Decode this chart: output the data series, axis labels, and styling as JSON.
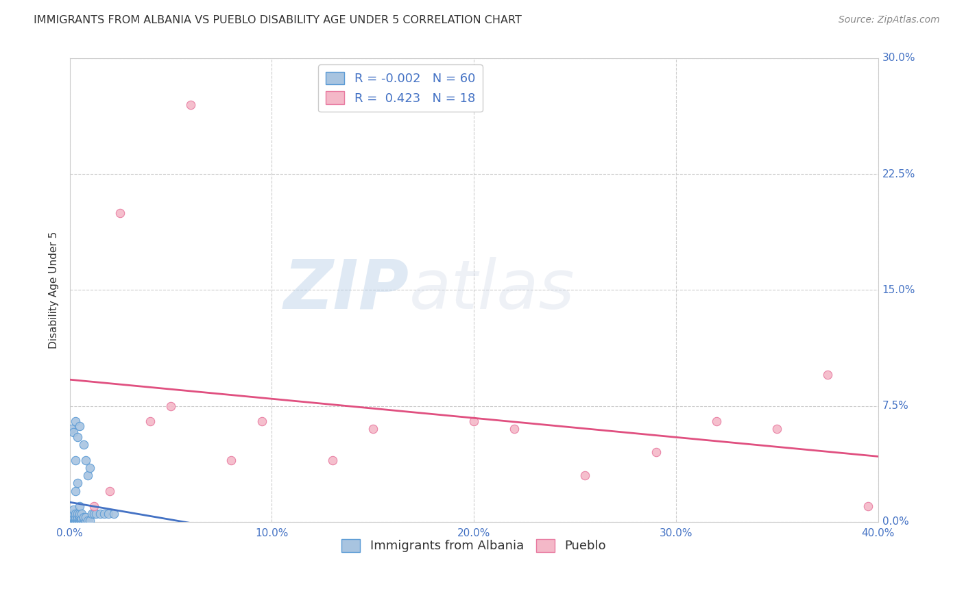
{
  "title": "IMMIGRANTS FROM ALBANIA VS PUEBLO DISABILITY AGE UNDER 5 CORRELATION CHART",
  "source": "Source: ZipAtlas.com",
  "xlabel_tick_vals": [
    0.0,
    0.1,
    0.2,
    0.3,
    0.4
  ],
  "ylabel_tick_vals": [
    0.0,
    0.075,
    0.15,
    0.225,
    0.3
  ],
  "ylabel_ticks": [
    "0.0%",
    "7.5%",
    "15.0%",
    "22.5%",
    "30.0%"
  ],
  "ylabel": "Disability Age Under 5",
  "xlim": [
    0.0,
    0.4
  ],
  "ylim": [
    0.0,
    0.3
  ],
  "albania_color": "#a8c4e0",
  "albania_edge_color": "#5b9bd5",
  "pueblo_color": "#f4b8c8",
  "pueblo_edge_color": "#e87aa0",
  "trend_albania_color": "#4472c4",
  "trend_pueblo_color": "#e05080",
  "r_albania": -0.002,
  "n_albania": 60,
  "r_pueblo": 0.423,
  "n_pueblo": 18,
  "albania_x": [
    0.001,
    0.001,
    0.001,
    0.001,
    0.001,
    0.001,
    0.001,
    0.001,
    0.001,
    0.001,
    0.001,
    0.002,
    0.002,
    0.002,
    0.002,
    0.002,
    0.002,
    0.002,
    0.002,
    0.003,
    0.003,
    0.003,
    0.003,
    0.003,
    0.003,
    0.003,
    0.004,
    0.004,
    0.004,
    0.004,
    0.004,
    0.004,
    0.005,
    0.005,
    0.005,
    0.005,
    0.005,
    0.005,
    0.005,
    0.006,
    0.006,
    0.006,
    0.007,
    0.007,
    0.007,
    0.007,
    0.008,
    0.008,
    0.008,
    0.009,
    0.009,
    0.01,
    0.01,
    0.011,
    0.012,
    0.013,
    0.015,
    0.017,
    0.019,
    0.022
  ],
  "albania_y": [
    0.001,
    0.001,
    0.001,
    0.002,
    0.002,
    0.002,
    0.003,
    0.003,
    0.004,
    0.005,
    0.06,
    0.001,
    0.001,
    0.002,
    0.002,
    0.003,
    0.005,
    0.008,
    0.058,
    0.001,
    0.002,
    0.003,
    0.005,
    0.02,
    0.04,
    0.065,
    0.001,
    0.002,
    0.003,
    0.005,
    0.025,
    0.055,
    0.001,
    0.002,
    0.003,
    0.004,
    0.005,
    0.01,
    0.062,
    0.001,
    0.002,
    0.005,
    0.001,
    0.002,
    0.003,
    0.05,
    0.001,
    0.003,
    0.04,
    0.001,
    0.03,
    0.001,
    0.035,
    0.005,
    0.005,
    0.005,
    0.005,
    0.005,
    0.005,
    0.005
  ],
  "pueblo_x": [
    0.012,
    0.02,
    0.025,
    0.04,
    0.05,
    0.06,
    0.08,
    0.095,
    0.13,
    0.15,
    0.2,
    0.22,
    0.255,
    0.29,
    0.32,
    0.35,
    0.375,
    0.395
  ],
  "pueblo_y": [
    0.01,
    0.02,
    0.2,
    0.065,
    0.075,
    0.27,
    0.04,
    0.065,
    0.04,
    0.06,
    0.065,
    0.06,
    0.03,
    0.045,
    0.065,
    0.06,
    0.095,
    0.01
  ],
  "watermark_zip": "ZIP",
  "watermark_atlas": "atlas",
  "legend_fontsize": 13,
  "title_fontsize": 11.5,
  "axis_label_fontsize": 11,
  "tick_fontsize": 11,
  "source_fontsize": 10,
  "marker_size": 80,
  "background_color": "#ffffff",
  "grid_color": "#cccccc"
}
